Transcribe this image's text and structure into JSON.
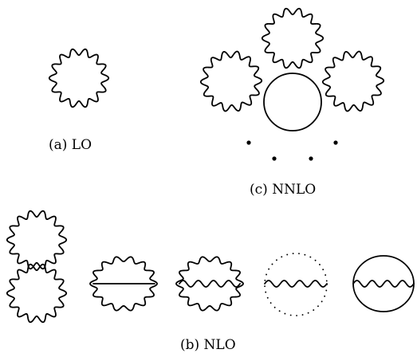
{
  "captions": {
    "lo": "(a) LO",
    "nnlo": "(c) NNLO",
    "nlo": "(b) NLO"
  },
  "colors": {
    "ink": "#000000",
    "background": "#ffffff"
  }
}
